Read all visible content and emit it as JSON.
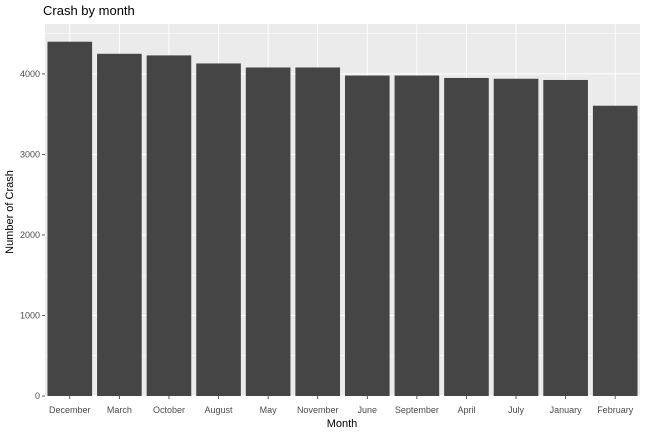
{
  "chart_data": {
    "type": "bar",
    "title": "Crash by month",
    "xlabel": "Month",
    "ylabel": "Number of Crash",
    "categories": [
      "December",
      "March",
      "October",
      "August",
      "May",
      "November",
      "June",
      "September",
      "April",
      "July",
      "January",
      "February"
    ],
    "values": [
      4400,
      4250,
      4230,
      4130,
      4080,
      4080,
      3980,
      3980,
      3950,
      3940,
      3925,
      3605
    ],
    "ylim": [
      0,
      4620
    ],
    "yticks": [
      0,
      1000,
      2000,
      3000,
      4000
    ],
    "ytick_labels": [
      "0",
      "1000",
      "2000",
      "3000",
      "4000"
    ],
    "grid": true,
    "legend": "none",
    "colors": {
      "panel_background": "#ebebeb",
      "grid": "#ffffff",
      "bar": "#454545"
    }
  }
}
